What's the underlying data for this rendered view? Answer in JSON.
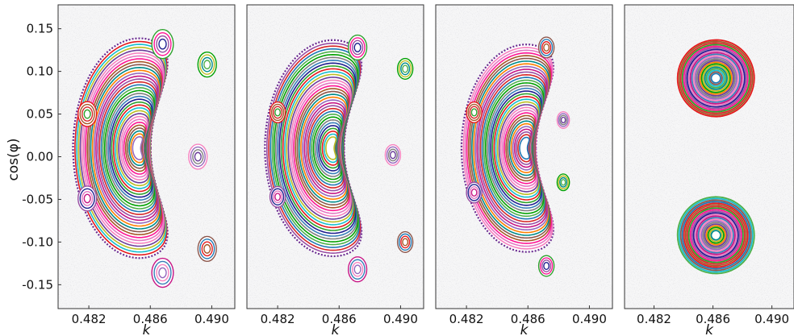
{
  "chart_data": [
    {
      "type": "scatter",
      "xlabel": "k",
      "ylabel": "cos(φ)",
      "xlim": [
        0.48,
        0.4915
      ],
      "ylim": [
        -0.178,
        0.178
      ],
      "x_ticks": [
        "0.482",
        "0.486",
        "0.490"
      ],
      "x_tick_values": [
        0.482,
        0.486,
        0.49
      ],
      "y_ticks": [
        "0.15",
        "0.10",
        "0.05",
        "0.00",
        "-0.05",
        "-0.10",
        "-0.15"
      ],
      "y_tick_values": [
        0.15,
        0.1,
        0.05,
        0.0,
        -0.05,
        -0.1,
        -0.15
      ],
      "region": {
        "center": [
          0.4853,
          0.01
        ],
        "rx": 0.0042,
        "ry": 0.125,
        "concavity": 0.0035
      },
      "islands": [
        {
          "x": 0.4819,
          "y": 0.05,
          "size": 0.0006
        },
        {
          "x": 0.4819,
          "y": -0.049,
          "size": 0.0006
        },
        {
          "x": 0.4891,
          "y": 0.0,
          "size": 0.0006
        },
        {
          "x": 0.4897,
          "y": 0.108,
          "size": 0.0006
        },
        {
          "x": 0.4897,
          "y": -0.108,
          "size": 0.0006
        },
        {
          "x": 0.4868,
          "y": 0.132,
          "size": 0.0007
        },
        {
          "x": 0.4868,
          "y": -0.136,
          "size": 0.0007
        }
      ]
    },
    {
      "type": "scatter",
      "xlabel": "k",
      "ylabel": "",
      "xlim": [
        0.48,
        0.4915
      ],
      "ylim": [
        -0.178,
        0.178
      ],
      "x_ticks": [
        "0.482",
        "0.486",
        "0.490"
      ],
      "x_tick_values": [
        0.482,
        0.486,
        0.49
      ],
      "y_ticks": [],
      "y_tick_values": [],
      "region": {
        "center": [
          0.4856,
          0.01
        ],
        "rx": 0.0043,
        "ry": 0.123,
        "concavity": 0.0036
      },
      "islands": [
        {
          "x": 0.482,
          "y": 0.052,
          "size": 0.0005
        },
        {
          "x": 0.482,
          "y": -0.047,
          "size": 0.0005
        },
        {
          "x": 0.4895,
          "y": 0.002,
          "size": 0.0005
        },
        {
          "x": 0.4903,
          "y": 0.103,
          "size": 0.0005
        },
        {
          "x": 0.4903,
          "y": -0.1,
          "size": 0.0005
        },
        {
          "x": 0.4872,
          "y": 0.128,
          "size": 0.0006
        },
        {
          "x": 0.4872,
          "y": -0.132,
          "size": 0.0006
        }
      ]
    },
    {
      "type": "scatter",
      "xlabel": "k",
      "ylabel": "",
      "xlim": [
        0.48,
        0.4915
      ],
      "ylim": [
        -0.178,
        0.178
      ],
      "x_ticks": [
        "0.482",
        "0.486",
        "0.490"
      ],
      "x_tick_values": [
        0.482,
        0.486,
        0.49
      ],
      "y_ticks": [],
      "y_tick_values": [],
      "region": {
        "center": [
          0.4859,
          0.01
        ],
        "rx": 0.0041,
        "ry": 0.118,
        "concavity": 0.0035
      },
      "islands": [
        {
          "x": 0.4825,
          "y": 0.052,
          "size": 0.0005
        },
        {
          "x": 0.4825,
          "y": -0.042,
          "size": 0.0005
        },
        {
          "x": 0.4883,
          "y": 0.043,
          "size": 0.0004
        },
        {
          "x": 0.4883,
          "y": -0.03,
          "size": 0.0004
        },
        {
          "x": 0.4872,
          "y": 0.128,
          "size": 0.0005
        },
        {
          "x": 0.4872,
          "y": -0.128,
          "size": 0.0005
        }
      ]
    },
    {
      "type": "scatter",
      "xlabel": "k",
      "ylabel": "",
      "xlim": [
        0.48,
        0.4915
      ],
      "ylim": [
        -0.178,
        0.178
      ],
      "x_ticks": [
        "0.482",
        "0.486",
        "0.490"
      ],
      "x_tick_values": [
        0.482,
        0.486,
        0.49
      ],
      "y_ticks": [],
      "y_tick_values": [],
      "lobes": [
        {
          "center": [
            0.4862,
            0.092
          ],
          "rx": 0.0026,
          "ry": 0.045
        },
        {
          "center": [
            0.4862,
            -0.092
          ],
          "rx": 0.0026,
          "ry": 0.045
        }
      ]
    }
  ]
}
